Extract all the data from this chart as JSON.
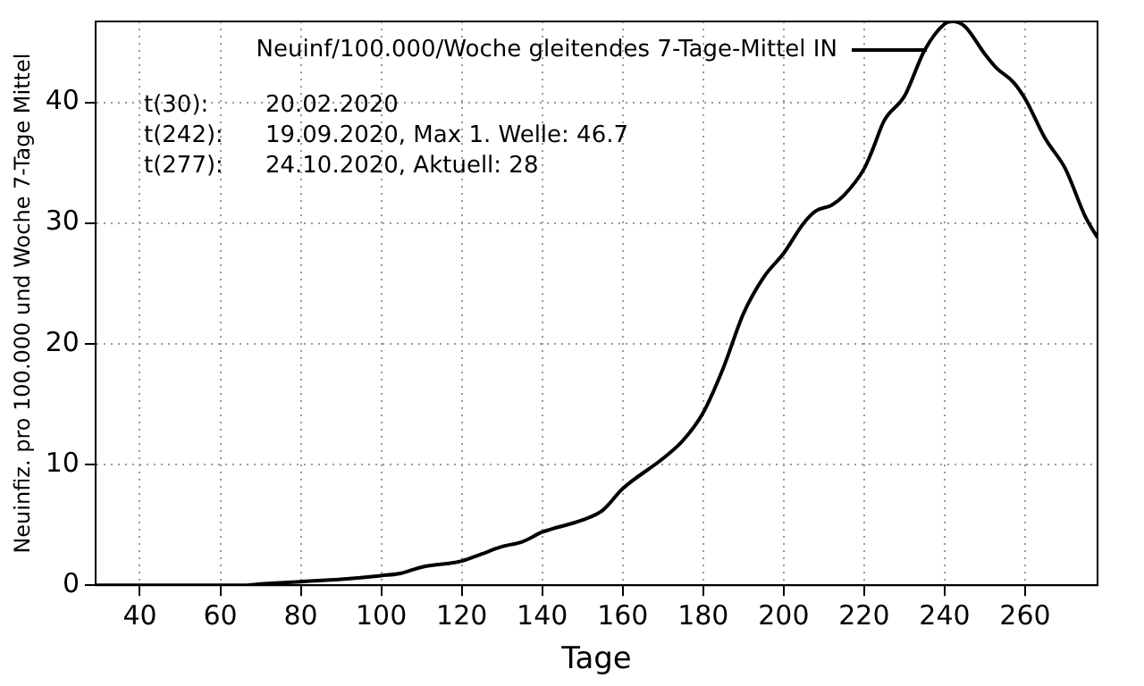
{
  "chart_data": {
    "type": "line",
    "xlabel": "Tage",
    "ylabel": "Neuinfiz. pro 100.000 und Woche 7-Tage Mittel",
    "x": [
      29,
      40,
      50,
      60,
      66,
      70,
      80,
      90,
      100,
      105,
      110,
      120,
      125,
      130,
      135,
      140,
      150,
      155,
      160,
      170,
      175,
      180,
      185,
      190,
      195,
      200,
      205,
      208,
      212,
      215,
      220,
      222,
      225,
      230,
      235,
      240,
      242,
      245,
      250,
      253,
      257,
      260,
      265,
      270,
      275,
      278
    ],
    "series": [
      {
        "name": "Neuinf/100.000/Woche gleitendes 7-Tage-Mittel IN",
        "color": "#000000",
        "values": [
          0,
          0,
          0,
          0,
          0,
          0.1,
          0.3,
          0.5,
          0.8,
          1.0,
          1.5,
          2.0,
          2.6,
          3.2,
          3.6,
          4.4,
          5.4,
          6.2,
          8.0,
          10.5,
          12.0,
          14.3,
          18,
          22.5,
          25.5,
          27.5,
          30,
          31,
          31.5,
          32.3,
          34.5,
          36,
          38.5,
          40.5,
          44.3,
          46.5,
          46.7,
          46.3,
          44,
          42.8,
          41.7,
          40.3,
          37,
          34.5,
          30.5,
          28.8
        ]
      }
    ],
    "xlim": [
      29,
      278
    ],
    "ylim": [
      0,
      46.7
    ],
    "xticks": [
      40,
      60,
      80,
      100,
      120,
      140,
      160,
      180,
      200,
      220,
      240,
      260
    ],
    "yticks": [
      0,
      10,
      20,
      30,
      40
    ],
    "grid": true,
    "legend": "top",
    "marker": "none",
    "line_style": "solid",
    "annotations": [
      "t(30):\t20.02.2020",
      "t(242):\t19.09.2020, Max 1. Welle: 46.7",
      "t(277):\t24.10.2020, Aktuell: 28"
    ]
  }
}
